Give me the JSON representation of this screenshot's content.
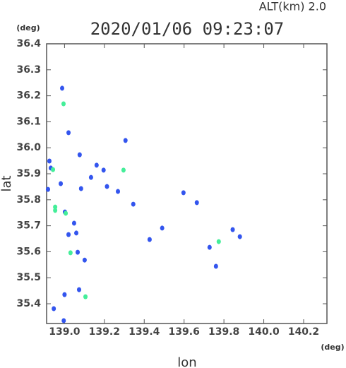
{
  "chart_data": {
    "type": "scatter",
    "title": "2020/01/06 09:23:07",
    "subtitle": "ALT(km)  2.0",
    "y_unit": "(deg)",
    "x_unit": "(deg)",
    "y_label": "lat",
    "x_label": "lon",
    "xlim": [
      138.91,
      140.317
    ],
    "ylim": [
      35.324,
      36.4
    ],
    "xticks": [
      {
        "value": 139,
        "label": "139.0"
      },
      139.2,
      139.4,
      139.6,
      139.8,
      {
        "value": 140,
        "label": "140.0"
      },
      140.2
    ],
    "yticks": [
      {
        "value": 35.4,
        "label": "35.4"
      },
      35.5,
      35.6,
      35.7,
      35.8,
      35.9,
      {
        "value": 36,
        "label": "36.0"
      },
      36.1,
      36.2,
      36.3,
      36.4
    ],
    "series": [
      {
        "color": "#3355ee",
        "x": [
          138.988,
          139.02,
          138.924,
          138.931,
          138.981,
          138.917,
          139.076,
          139.133,
          139.196,
          139.213,
          139.306,
          139.268,
          139.345,
          139.49,
          139.664,
          139.728,
          139.76,
          139.844,
          139.88,
          139.002,
          139.048,
          139.02,
          139.059,
          139.066,
          139.101,
          139.0,
          139.073,
          138.946,
          138.996,
          139.427,
          139.597,
          139.083,
          139.161
        ],
        "y": [
          36.229,
          36.058,
          35.949,
          35.922,
          35.862,
          35.84,
          35.973,
          35.886,
          35.914,
          35.851,
          36.028,
          35.832,
          35.783,
          35.691,
          35.789,
          35.617,
          35.544,
          35.685,
          35.658,
          35.753,
          35.71,
          35.666,
          35.672,
          35.598,
          35.568,
          35.435,
          35.454,
          35.381,
          35.335,
          35.647,
          35.827,
          35.843,
          35.933
        ]
      },
      {
        "color": "#44ee99",
        "x": [
          138.995,
          138.942,
          138.953,
          139.006,
          139.03,
          139.105,
          139.296,
          139.774,
          138.953
        ],
        "y": [
          36.169,
          35.916,
          35.772,
          35.748,
          35.596,
          35.427,
          35.914,
          35.639,
          35.759
        ]
      }
    ]
  }
}
